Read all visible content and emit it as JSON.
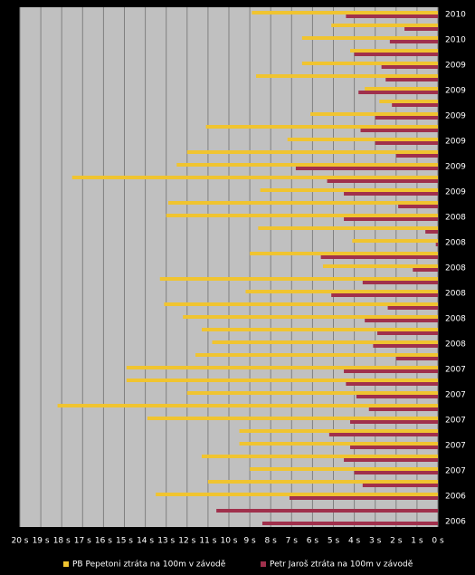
{
  "chart_data": {
    "type": "bar",
    "orientation": "horizontal",
    "categories": [
      "2010",
      null,
      "2010",
      null,
      "2009",
      null,
      "2009",
      null,
      "2009",
      null,
      "2009",
      null,
      "2009",
      null,
      "2009",
      null,
      "2008",
      null,
      "2008",
      null,
      "2008",
      null,
      "2008",
      null,
      "2008",
      null,
      "2008",
      null,
      "2007",
      null,
      "2007",
      null,
      "2007",
      null,
      "2007",
      null,
      "2007",
      null,
      "2006",
      null,
      "2006"
    ],
    "series": [
      {
        "name": "PB Pepetoni ztráta na 100m v závodě",
        "color": "#f0c430",
        "values": [
          8.9,
          5.1,
          6.5,
          4.2,
          6.5,
          8.7,
          3.5,
          2.8,
          6.1,
          11.1,
          7.2,
          12.0,
          12.5,
          17.5,
          8.5,
          12.9,
          13.0,
          8.6,
          4.1,
          9.0,
          5.5,
          13.3,
          9.2,
          13.1,
          12.2,
          11.3,
          10.8,
          11.6,
          14.9,
          14.9,
          12.0,
          18.2,
          13.9,
          9.5,
          9.5,
          11.3,
          9.0,
          11.0,
          13.5,
          null,
          null
        ]
      },
      {
        "name": "Petr Jaroš ztráta na 100m v závodě",
        "color": "#a0304c",
        "values": [
          4.4,
          1.6,
          2.3,
          4.0,
          2.7,
          2.5,
          3.8,
          2.2,
          3.0,
          3.7,
          3.0,
          2.0,
          6.8,
          5.3,
          4.5,
          1.9,
          4.5,
          0.6,
          0.1,
          5.6,
          1.2,
          3.6,
          5.1,
          2.4,
          3.5,
          2.9,
          3.1,
          2.0,
          4.5,
          4.4,
          3.9,
          3.3,
          4.2,
          5.2,
          4.2,
          4.5,
          4.0,
          3.6,
          7.1,
          10.6,
          8.4
        ]
      }
    ],
    "xlim": [
      20,
      0
    ],
    "xticks": [
      {
        "value": 20,
        "label": "20 s"
      },
      {
        "value": 19,
        "label": "19 s"
      },
      {
        "value": 18,
        "label": "18 s"
      },
      {
        "value": 17,
        "label": "17 s"
      },
      {
        "value": 16,
        "label": "16 s"
      },
      {
        "value": 15,
        "label": "15 s"
      },
      {
        "value": 14,
        "label": "14 s"
      },
      {
        "value": 13,
        "label": "13 s"
      },
      {
        "value": 12,
        "label": "12 s"
      },
      {
        "value": 11,
        "label": "11 s"
      },
      {
        "value": 10,
        "label": "10 s"
      },
      {
        "value": 9,
        "label": "9 s"
      },
      {
        "value": 8,
        "label": "8 s"
      },
      {
        "value": 7,
        "label": "7 s"
      },
      {
        "value": 6,
        "label": "6 s"
      },
      {
        "value": 5,
        "label": "5 s"
      },
      {
        "value": 4,
        "label": "4 s"
      },
      {
        "value": 3,
        "label": "3 s"
      },
      {
        "value": 2,
        "label": "2 s"
      },
      {
        "value": 1,
        "label": "1 s"
      },
      {
        "value": 0,
        "label": "0 s"
      }
    ],
    "grid": true,
    "legend": "bottom"
  }
}
